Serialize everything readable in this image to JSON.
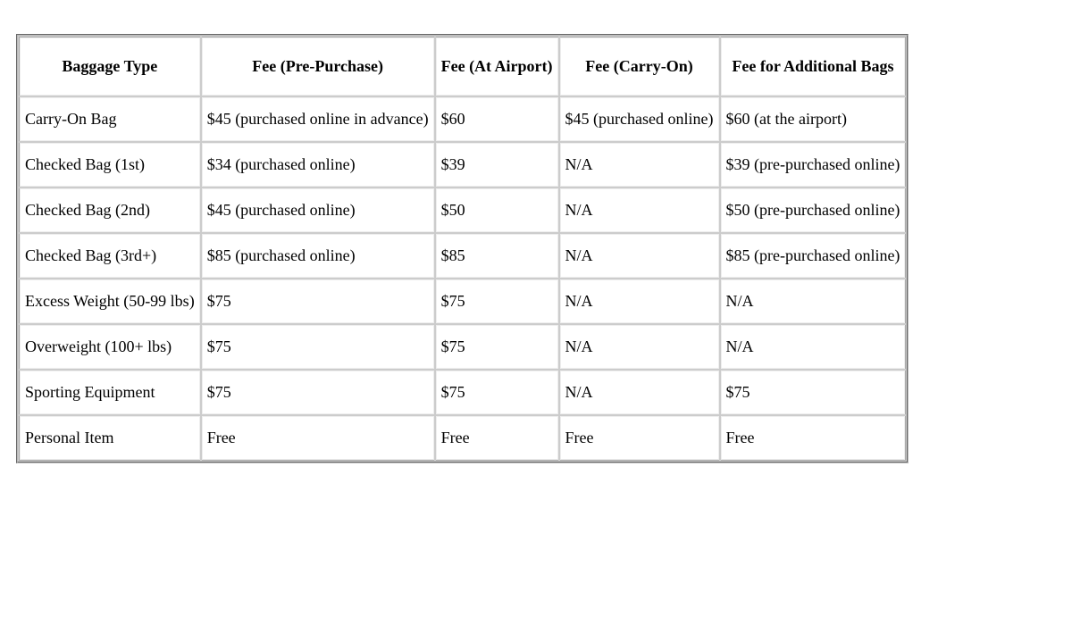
{
  "table": {
    "type": "table",
    "background_color": "#ffffff",
    "text_color": "#000000",
    "border_color": "#999999",
    "font_family": "Times New Roman",
    "header_fontsize": 18,
    "cell_fontsize": 18,
    "cell_padding_v": 14,
    "cell_padding_h": 6,
    "columns": [
      {
        "label": "Baggage Type",
        "align": "left",
        "header_align": "center"
      },
      {
        "label": "Fee (Pre-Purchase)",
        "align": "left",
        "header_align": "center"
      },
      {
        "label": "Fee (At Airport)",
        "align": "left",
        "header_align": "center"
      },
      {
        "label": "Fee (Carry-On)",
        "align": "left",
        "header_align": "center"
      },
      {
        "label": "Fee for Additional Bags",
        "align": "left",
        "header_align": "center"
      }
    ],
    "rows": [
      [
        "Carry-On Bag",
        "$45 (purchased online in advance)",
        "$60",
        "$45 (purchased online)",
        "$60 (at the airport)"
      ],
      [
        "Checked Bag (1st)",
        "$34 (purchased online)",
        "$39",
        "N/A",
        "$39 (pre-purchased online)"
      ],
      [
        "Checked Bag (2nd)",
        "$45 (purchased online)",
        "$50",
        "N/A",
        "$50 (pre-purchased online)"
      ],
      [
        "Checked Bag (3rd+)",
        "$85 (purchased online)",
        "$85",
        "N/A",
        "$85 (pre-purchased online)"
      ],
      [
        "Excess Weight (50-99 lbs)",
        "$75",
        "$75",
        "N/A",
        "N/A"
      ],
      [
        "Overweight (100+ lbs)",
        "$75",
        "$75",
        "N/A",
        "N/A"
      ],
      [
        "Sporting Equipment",
        "$75",
        "$75",
        "N/A",
        "$75"
      ],
      [
        "Personal Item",
        "Free",
        "Free",
        "Free",
        "Free"
      ]
    ]
  }
}
